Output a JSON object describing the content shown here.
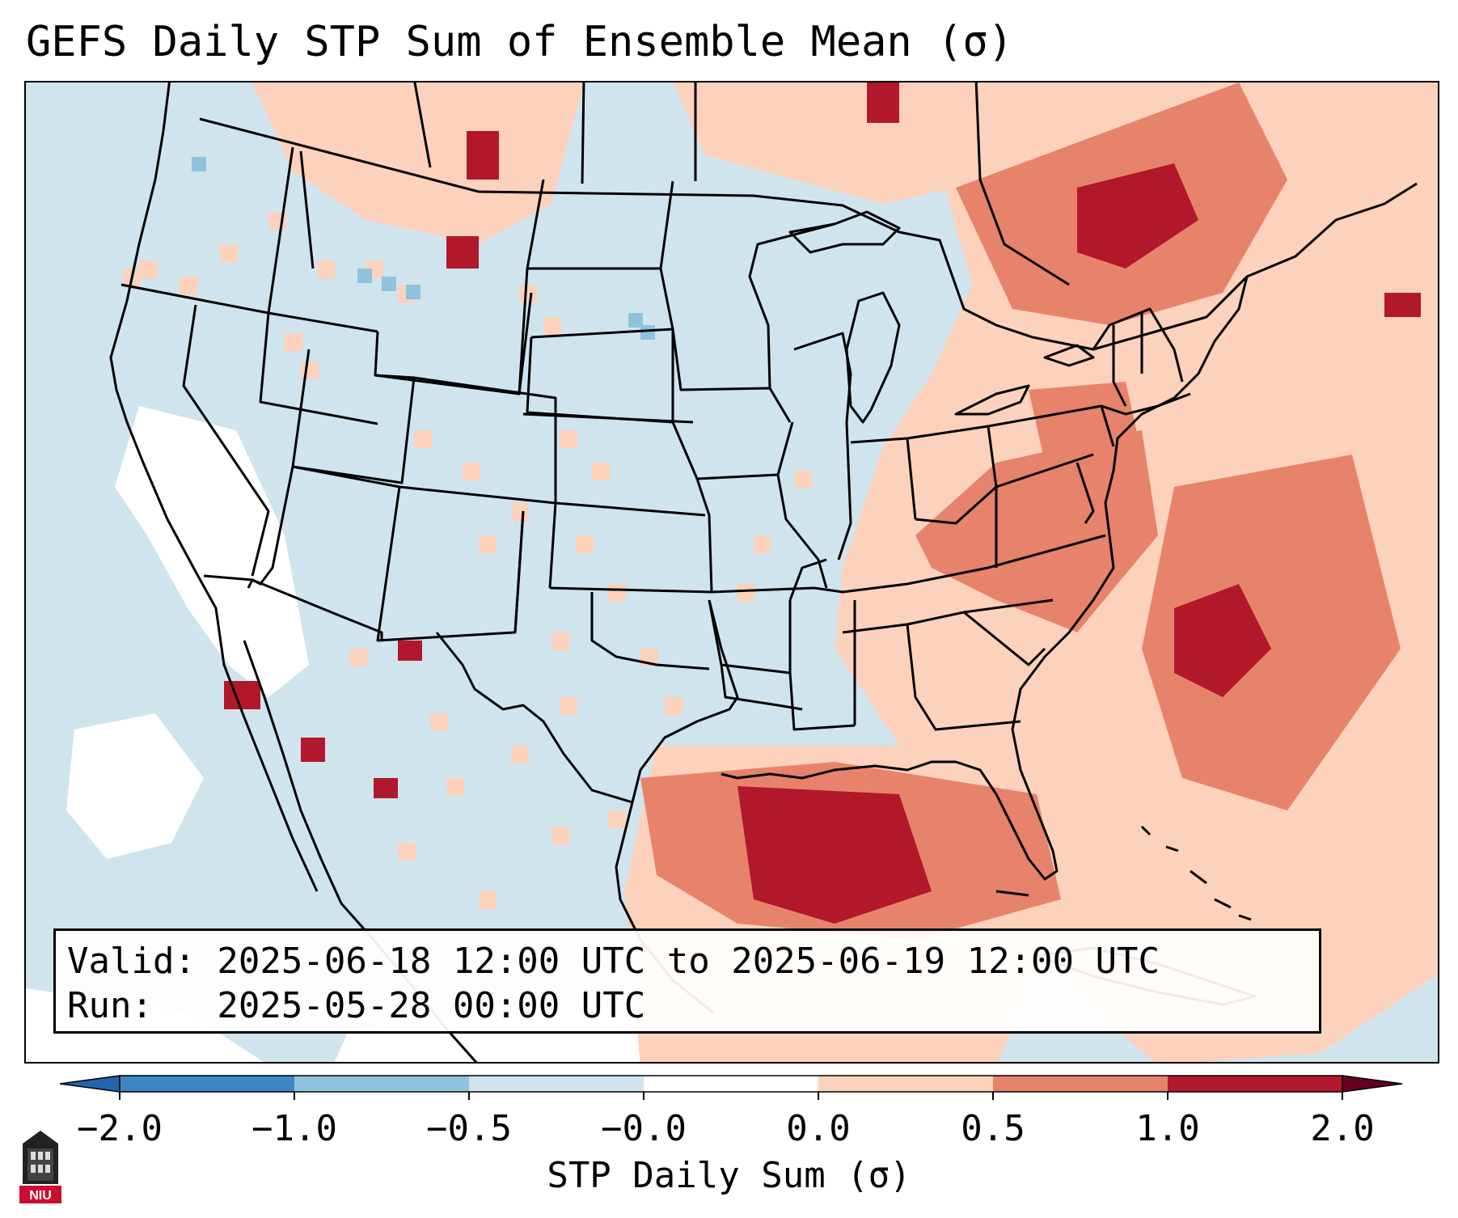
{
  "title": "GEFS Daily STP Sum of Ensemble Mean (σ)",
  "valid_line": "Valid: 2025-06-18 12:00 UTC to 2025-06-19 12:00 UTC",
  "run_line": "Run:   2025-05-28 00:00 UTC",
  "colorbar": {
    "label": "STP Daily Sum (σ)",
    "ticks": [
      "−2.0",
      "−1.0",
      "−0.5",
      "−0.0",
      "0.0",
      "0.5",
      "1.0",
      "2.0"
    ],
    "colors": [
      "#3d86c1",
      "#8fc3dd",
      "#d0e4ee",
      "#ffffff",
      "#fcd2bc",
      "#e7836a",
      "#b2182b"
    ]
  },
  "logo_text": "NIU",
  "colors": {
    "ocean": "#d0e4ee",
    "neutral": "#ffffff",
    "light_red": "#fcd2bc",
    "mid_red": "#e7836a",
    "dark_red": "#b2182b",
    "light_blue": "#8fc3dd",
    "boundary": "#000000"
  }
}
